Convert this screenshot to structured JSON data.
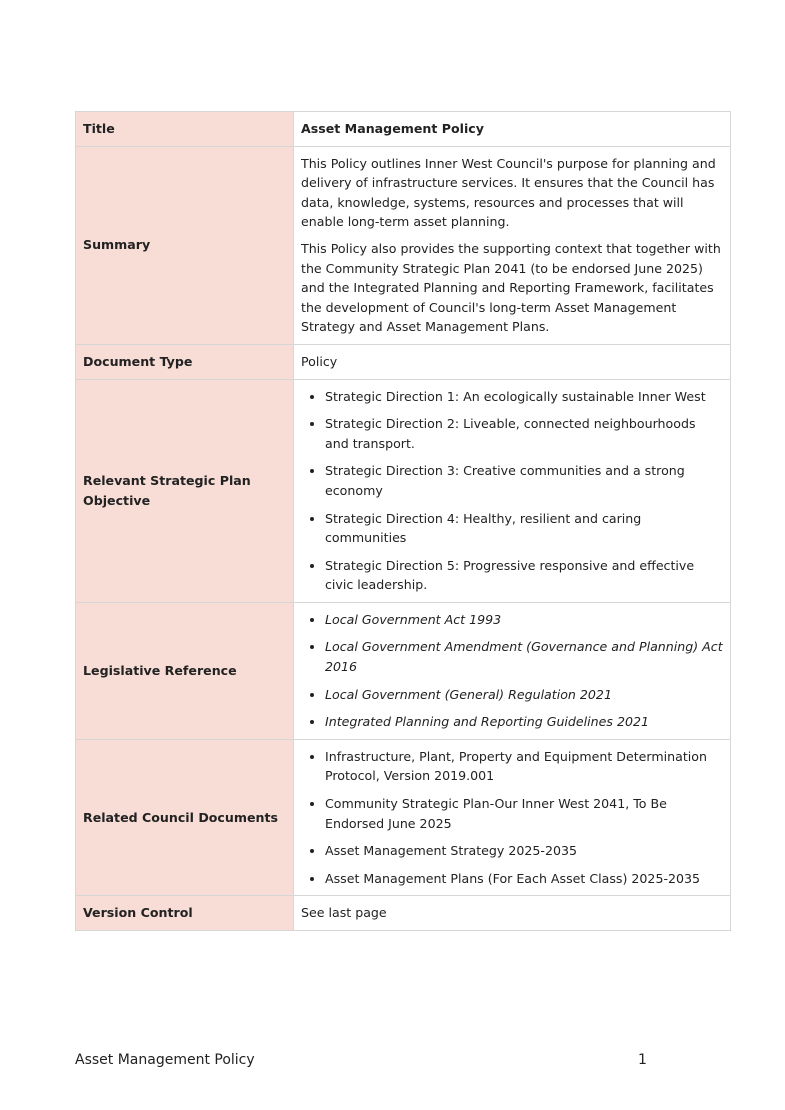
{
  "table": {
    "rows": [
      {
        "label": "Title",
        "paragraphs": [
          "Asset Management Policy"
        ]
      },
      {
        "label": "Summary",
        "paragraphs": [
          "This Policy outlines Inner West Council's purpose for planning and delivery of infrastructure services. It ensures that the Council has data, knowledge, systems, resources and processes that will enable long-term asset planning.",
          "This Policy also provides the supporting context that together with the Community Strategic Plan 2041 (to be endorsed June 2025) and the Integrated Planning and Reporting Framework, facilitates the development of Council's long-term Asset Management Strategy and Asset Management Plans."
        ]
      },
      {
        "label": "Document Type",
        "paragraphs": [
          "Policy"
        ]
      },
      {
        "label": "Relevant Strategic Plan Objective",
        "items": [
          "Strategic Direction 1: An ecologically sustainable Inner West",
          "Strategic Direction 2: Liveable, connected neighbourhoods and transport.",
          "Strategic Direction 3: Creative communities and a strong economy",
          "Strategic Direction 4: Healthy, resilient and caring communities",
          "Strategic Direction 5: Progressive responsive and effective civic leadership."
        ]
      },
      {
        "label": "Legislative Reference",
        "items": [
          "Local Government Act 1993",
          "Local Government Amendment (Governance and Planning) Act 2016",
          "Local Government (General) Regulation 2021",
          "Integrated Planning and Reporting Guidelines 2021"
        ]
      },
      {
        "label": "Related Council Documents",
        "items": [
          "Infrastructure, Plant, Property and Equipment Determination Protocol, Version 2019.001",
          "Community Strategic Plan-Our Inner West 2041, To Be Endorsed June 2025",
          "Asset Management Strategy 2025-2035",
          "Asset Management Plans (For Each Asset Class) 2025-2035"
        ]
      },
      {
        "label": "Version Control",
        "paragraphs": [
          "See last page"
        ]
      }
    ]
  },
  "footer": {
    "title": "Asset Management Policy",
    "page": 1
  }
}
